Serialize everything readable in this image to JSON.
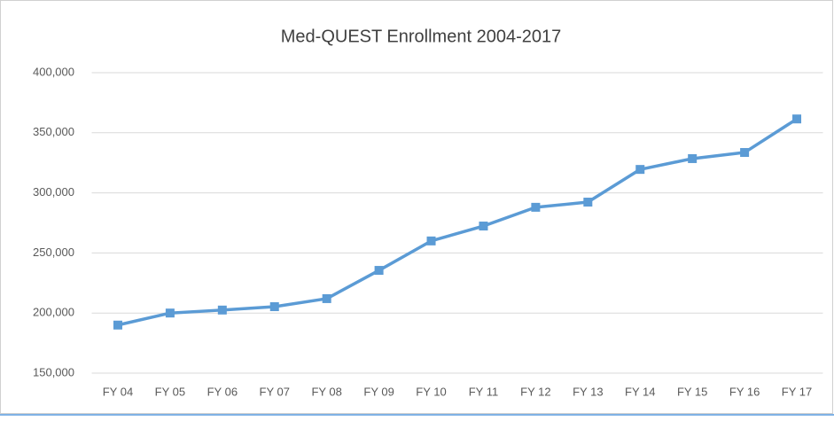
{
  "chart_data": {
    "type": "line",
    "title": "Med-QUEST Enrollment 2004-2017",
    "categories": [
      "FY 04",
      "FY 05",
      "FY 06",
      "FY 07",
      "FY 08",
      "FY 09",
      "FY 10",
      "FY 11",
      "FY 12",
      "FY 13",
      "FY 14",
      "FY 15",
      "FY 16",
      "FY 17"
    ],
    "values": [
      190000,
      200000,
      202500,
      205300,
      212000,
      235500,
      260000,
      272400,
      288000,
      292300,
      319500,
      328500,
      333600,
      361500
    ],
    "color": "#5b9bd5",
    "ylim": [
      150000,
      400000
    ],
    "yticks": [
      {
        "value": 150000,
        "label": "150,000"
      },
      {
        "value": 200000,
        "label": "200,000"
      },
      {
        "value": 250000,
        "label": "250,000"
      },
      {
        "value": 300000,
        "label": "300,000"
      },
      {
        "value": 350000,
        "label": "350,000"
      },
      {
        "value": 400000,
        "label": "400,000"
      }
    ],
    "grid": true
  }
}
